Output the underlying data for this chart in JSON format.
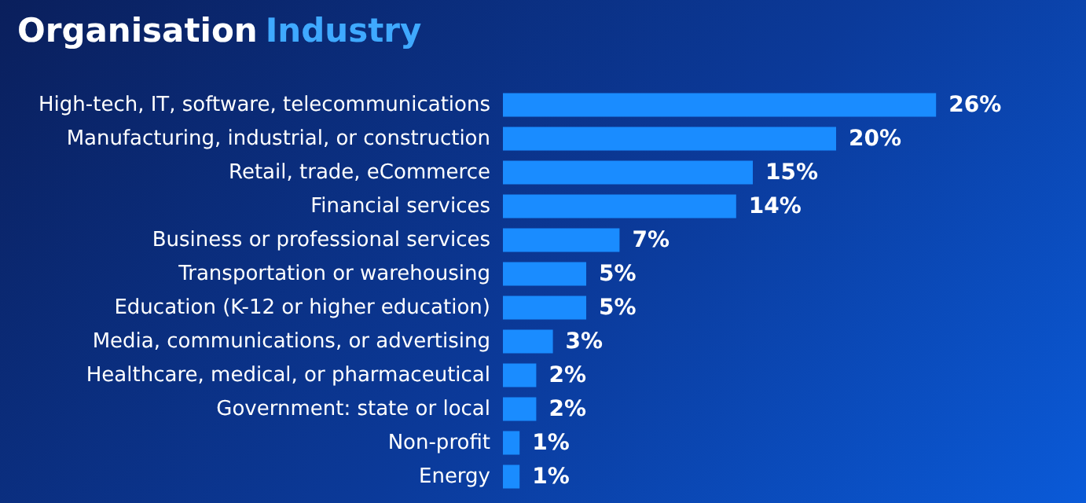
{
  "chart_data": {
    "type": "bar",
    "orientation": "horizontal",
    "title": "Organisation Industry",
    "categories": [
      "High-tech, IT, software, telecommunications",
      "Manufacturing, industrial, or construction",
      "Retail, trade, eCommerce",
      "Financial services",
      "Business or professional services",
      "Transportation or warehousing",
      "Education (K-12 or higher education)",
      "Media, communications, or advertising",
      "Healthcare, medical, or pharmaceutical",
      "Government: state or local",
      "Non-profit",
      "Energy"
    ],
    "values": [
      26,
      20,
      15,
      14,
      7,
      5,
      5,
      3,
      2,
      2,
      1,
      1
    ],
    "value_labels": [
      "26%",
      "20%",
      "15%",
      "14%",
      "7%",
      "5%",
      "5%",
      "3%",
      "2%",
      "2%",
      "1%",
      "1%"
    ],
    "color": "#1a8cff"
  }
}
